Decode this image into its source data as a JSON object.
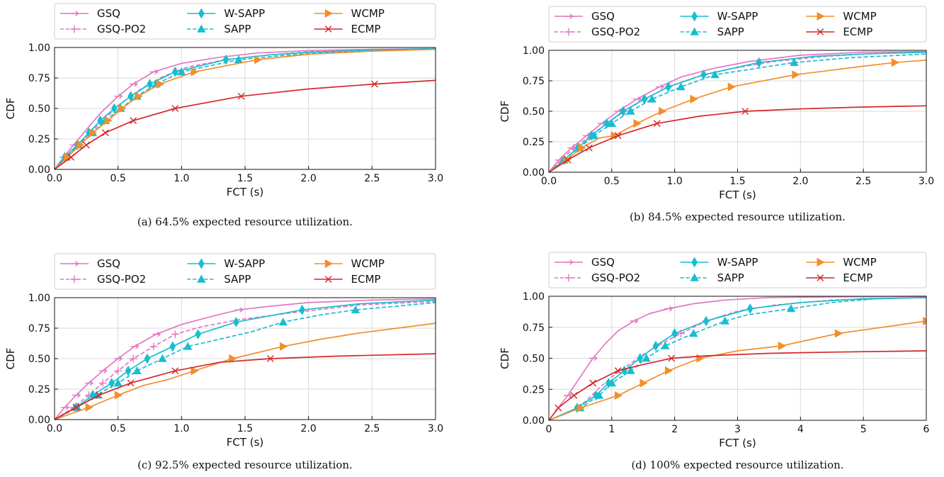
{
  "figure": {
    "captions": [
      "(a) 64.5% expected resource utilization.",
      "(b) 84.5% expected resource utilization.",
      "(c) 92.5% expected resource utilization.",
      "(d) 100% expected resource utilization."
    ]
  },
  "legend": [
    {
      "label": "GSQ",
      "color": "#e377c2",
      "marker": "tri-right-line",
      "dash": "solid"
    },
    {
      "label": "GSQ-PO2",
      "color": "#e377c2",
      "marker": "plus",
      "dash": "dashed"
    },
    {
      "label": "W-SAPP",
      "color": "#17becf",
      "marker": "thin-diamond",
      "dash": "solid"
    },
    {
      "label": "SAPP",
      "color": "#17becf",
      "marker": "triangle-up",
      "dash": "dashed"
    },
    {
      "label": "WCMP",
      "color": "#f28e2b",
      "marker": "triangle-right",
      "dash": "solid"
    },
    {
      "label": "ECMP",
      "color": "#d62728",
      "marker": "x",
      "dash": "solid"
    }
  ],
  "chart_data": [
    {
      "type": "line",
      "panel": "a",
      "xlabel": "FCT (s)",
      "ylabel": "CDF",
      "xlim": [
        0,
        3
      ],
      "ylim": [
        0,
        1
      ],
      "xticks": [
        "0.0",
        "0.5",
        "1.0",
        "1.5",
        "2.0",
        "2.5",
        "3.0"
      ],
      "yticks": [
        "0.00",
        "0.25",
        "0.50",
        "0.75",
        "1.00"
      ],
      "grid": true,
      "series": [
        {
          "name": "GSQ",
          "x": [
            0,
            0.07,
            0.15,
            0.27,
            0.37,
            0.5,
            0.62,
            0.78,
            1.0,
            1.3,
            1.6,
            2.0,
            2.5,
            3.0
          ],
          "y": [
            0,
            0.1,
            0.2,
            0.35,
            0.47,
            0.6,
            0.7,
            0.8,
            0.87,
            0.92,
            0.955,
            0.975,
            0.985,
            0.99
          ]
        },
        {
          "name": "GSQ-PO2",
          "x": [
            0,
            0.08,
            0.18,
            0.3,
            0.42,
            0.55,
            0.68,
            0.85,
            1.05,
            1.35,
            1.7,
            2.0,
            2.5,
            3.0
          ],
          "y": [
            0,
            0.1,
            0.2,
            0.32,
            0.44,
            0.56,
            0.66,
            0.76,
            0.84,
            0.9,
            0.94,
            0.965,
            0.98,
            0.99
          ]
        },
        {
          "name": "W-SAPP",
          "x": [
            0,
            0.08,
            0.18,
            0.27,
            0.36,
            0.47,
            0.6,
            0.75,
            0.95,
            1.35,
            1.7,
            2.0,
            2.5,
            3.0
          ],
          "y": [
            0,
            0.1,
            0.2,
            0.3,
            0.4,
            0.5,
            0.6,
            0.7,
            0.8,
            0.9,
            0.94,
            0.96,
            0.98,
            0.99
          ]
        },
        {
          "name": "SAPP",
          "x": [
            0,
            0.09,
            0.19,
            0.3,
            0.4,
            0.52,
            0.65,
            0.8,
            1.0,
            1.45,
            1.8,
            2.1,
            2.5,
            3.0
          ],
          "y": [
            0,
            0.1,
            0.2,
            0.3,
            0.4,
            0.5,
            0.6,
            0.7,
            0.8,
            0.9,
            0.935,
            0.955,
            0.975,
            0.99
          ]
        },
        {
          "name": "WCMP",
          "x": [
            0,
            0.1,
            0.2,
            0.3,
            0.42,
            0.53,
            0.66,
            0.83,
            1.1,
            1.6,
            2.0,
            2.5,
            3.0
          ],
          "y": [
            0,
            0.1,
            0.2,
            0.3,
            0.4,
            0.5,
            0.6,
            0.7,
            0.8,
            0.9,
            0.945,
            0.97,
            0.985
          ]
        },
        {
          "name": "ECMP",
          "x": [
            0,
            0.13,
            0.25,
            0.4,
            0.62,
            0.95,
            1.47,
            2.0,
            2.52,
            3.0
          ],
          "y": [
            0,
            0.1,
            0.2,
            0.3,
            0.4,
            0.5,
            0.6,
            0.66,
            0.7,
            0.73
          ]
        }
      ]
    },
    {
      "type": "line",
      "panel": "b",
      "xlabel": "FCT (s)",
      "ylabel": "CDF",
      "xlim": [
        0,
        3
      ],
      "ylim": [
        0,
        1
      ],
      "xticks": [
        "0.0",
        "0.5",
        "1.0",
        "1.5",
        "2.0",
        "2.5",
        "3.0"
      ],
      "yticks": [
        "0.00",
        "0.25",
        "0.50",
        "0.75",
        "1.00"
      ],
      "grid": true,
      "series": [
        {
          "name": "GSQ",
          "x": [
            0,
            0.08,
            0.18,
            0.3,
            0.42,
            0.55,
            0.7,
            0.88,
            1.05,
            1.3,
            1.6,
            2.0,
            2.5,
            3.0
          ],
          "y": [
            0,
            0.1,
            0.2,
            0.3,
            0.4,
            0.5,
            0.6,
            0.7,
            0.78,
            0.85,
            0.91,
            0.96,
            0.985,
            0.99
          ]
        },
        {
          "name": "GSQ-PO2",
          "x": [
            0,
            0.1,
            0.2,
            0.33,
            0.46,
            0.6,
            0.76,
            0.95,
            1.17,
            1.45,
            1.8,
            2.2,
            2.6,
            3.0
          ],
          "y": [
            0,
            0.1,
            0.2,
            0.3,
            0.4,
            0.5,
            0.6,
            0.7,
            0.78,
            0.85,
            0.91,
            0.95,
            0.975,
            0.985
          ]
        },
        {
          "name": "W-SAPP",
          "x": [
            0,
            0.12,
            0.23,
            0.34,
            0.46,
            0.59,
            0.76,
            0.95,
            1.23,
            1.67,
            2.1,
            2.5,
            3.0
          ],
          "y": [
            0,
            0.1,
            0.2,
            0.3,
            0.4,
            0.5,
            0.6,
            0.7,
            0.8,
            0.9,
            0.95,
            0.97,
            0.985
          ]
        },
        {
          "name": "SAPP",
          "x": [
            0,
            0.12,
            0.24,
            0.36,
            0.5,
            0.65,
            0.82,
            1.05,
            1.32,
            1.95,
            2.4,
            3.0
          ],
          "y": [
            0,
            0.1,
            0.2,
            0.3,
            0.4,
            0.5,
            0.6,
            0.7,
            0.8,
            0.9,
            0.94,
            0.97
          ]
        },
        {
          "name": "WCMP",
          "x": [
            0,
            0.14,
            0.26,
            0.4,
            0.52,
            0.7,
            0.9,
            1.15,
            1.45,
            1.96,
            2.5,
            2.75,
            3.0
          ],
          "y": [
            0,
            0.1,
            0.2,
            0.28,
            0.3,
            0.4,
            0.5,
            0.6,
            0.7,
            0.8,
            0.87,
            0.9,
            0.92
          ]
        },
        {
          "name": "ECMP",
          "x": [
            0,
            0.15,
            0.32,
            0.55,
            0.86,
            1.2,
            1.56,
            2.0,
            2.5,
            3.0
          ],
          "y": [
            0,
            0.1,
            0.2,
            0.3,
            0.4,
            0.46,
            0.5,
            0.52,
            0.535,
            0.545
          ]
        }
      ]
    },
    {
      "type": "line",
      "panel": "c",
      "xlabel": "FCT (s)",
      "ylabel": "CDF",
      "xlim": [
        0,
        3
      ],
      "ylim": [
        0,
        1
      ],
      "xticks": [
        "0.0",
        "0.5",
        "1.0",
        "1.5",
        "2.0",
        "2.5",
        "3.0"
      ],
      "yticks": [
        "0.00",
        "0.25",
        "0.50",
        "0.75",
        "1.00"
      ],
      "grid": true,
      "series": [
        {
          "name": "GSQ",
          "x": [
            0,
            0.08,
            0.17,
            0.27,
            0.38,
            0.5,
            0.63,
            0.8,
            1.0,
            1.25,
            1.45,
            1.7,
            2.0,
            2.5,
            3.0
          ],
          "y": [
            0,
            0.1,
            0.2,
            0.3,
            0.4,
            0.5,
            0.6,
            0.7,
            0.78,
            0.85,
            0.9,
            0.93,
            0.96,
            0.98,
            0.99
          ]
        },
        {
          "name": "GSQ-PO2",
          "x": [
            0,
            0.15,
            0.27,
            0.38,
            0.5,
            0.62,
            0.78,
            0.95,
            1.15,
            1.45,
            1.9,
            2.4,
            3.0
          ],
          "y": [
            0,
            0.1,
            0.2,
            0.3,
            0.4,
            0.5,
            0.6,
            0.7,
            0.76,
            0.82,
            0.88,
            0.94,
            0.97
          ]
        },
        {
          "name": "W-SAPP",
          "x": [
            0,
            0.17,
            0.3,
            0.45,
            0.58,
            0.73,
            0.93,
            1.13,
            1.43,
            1.95,
            2.4,
            3.0
          ],
          "y": [
            0,
            0.1,
            0.2,
            0.3,
            0.4,
            0.5,
            0.6,
            0.7,
            0.8,
            0.9,
            0.95,
            0.98
          ]
        },
        {
          "name": "SAPP",
          "x": [
            0,
            0.18,
            0.33,
            0.5,
            0.65,
            0.85,
            1.05,
            1.3,
            1.55,
            1.8,
            2.1,
            2.37,
            3.0
          ],
          "y": [
            0,
            0.1,
            0.2,
            0.3,
            0.4,
            0.5,
            0.6,
            0.66,
            0.72,
            0.8,
            0.86,
            0.9,
            0.96
          ]
        },
        {
          "name": "WCMP",
          "x": [
            0,
            0.27,
            0.5,
            0.7,
            0.9,
            1.1,
            1.4,
            1.8,
            2.1,
            2.4,
            2.7,
            3.0
          ],
          "y": [
            0,
            0.1,
            0.2,
            0.28,
            0.33,
            0.4,
            0.5,
            0.6,
            0.66,
            0.71,
            0.75,
            0.79
          ]
        },
        {
          "name": "ECMP",
          "x": [
            0,
            0.17,
            0.35,
            0.6,
            0.95,
            1.3,
            1.7,
            2.2,
            2.6,
            3.0
          ],
          "y": [
            0,
            0.1,
            0.2,
            0.3,
            0.4,
            0.47,
            0.5,
            0.52,
            0.53,
            0.54
          ]
        }
      ]
    },
    {
      "type": "line",
      "panel": "d",
      "xlabel": "FCT (s)",
      "ylabel": "CDF",
      "xlim": [
        0,
        6
      ],
      "ylim": [
        0,
        1
      ],
      "xticks": [
        "0",
        "1",
        "2",
        "3",
        "4",
        "5",
        "6"
      ],
      "yticks": [
        "0.00",
        "0.25",
        "0.50",
        "0.75",
        "1.00"
      ],
      "grid": true,
      "series": [
        {
          "name": "GSQ",
          "x": [
            0,
            0.3,
            0.5,
            0.7,
            0.9,
            1.1,
            1.35,
            1.6,
            1.9,
            2.3,
            2.8,
            3.5,
            4.5,
            6.0
          ],
          "y": [
            0,
            0.2,
            0.35,
            0.5,
            0.62,
            0.72,
            0.8,
            0.86,
            0.9,
            0.94,
            0.97,
            0.99,
            0.995,
            1.0
          ]
        },
        {
          "name": "GSQ-PO2",
          "x": [
            0,
            0.4,
            0.6,
            0.8,
            1.0,
            1.25,
            1.5,
            1.8,
            2.1,
            2.5,
            3.0,
            3.6,
            4.5,
            6.0
          ],
          "y": [
            0,
            0.08,
            0.16,
            0.26,
            0.35,
            0.44,
            0.53,
            0.62,
            0.7,
            0.8,
            0.88,
            0.93,
            0.97,
            0.99
          ]
        },
        {
          "name": "W-SAPP",
          "x": [
            0,
            0.45,
            0.75,
            0.95,
            1.2,
            1.45,
            1.7,
            2.0,
            2.5,
            3.2,
            4.0,
            5.0,
            6.0
          ],
          "y": [
            0,
            0.1,
            0.2,
            0.3,
            0.4,
            0.5,
            0.6,
            0.7,
            0.8,
            0.9,
            0.95,
            0.98,
            0.99
          ]
        },
        {
          "name": "SAPP",
          "x": [
            0,
            0.5,
            0.8,
            1.0,
            1.3,
            1.55,
            1.85,
            2.3,
            2.8,
            3.15,
            3.85,
            4.5,
            5.2,
            6.0
          ],
          "y": [
            0,
            0.1,
            0.2,
            0.3,
            0.4,
            0.5,
            0.6,
            0.7,
            0.8,
            0.85,
            0.9,
            0.95,
            0.98,
            0.99
          ]
        },
        {
          "name": "WCMP",
          "x": [
            0,
            0.5,
            0.8,
            1.1,
            1.5,
            1.9,
            2.4,
            3.0,
            3.7,
            4.6,
            5.3,
            6.0
          ],
          "y": [
            0,
            0.1,
            0.15,
            0.2,
            0.3,
            0.4,
            0.5,
            0.56,
            0.6,
            0.7,
            0.75,
            0.8
          ]
        },
        {
          "name": "ECMP",
          "x": [
            0,
            0.15,
            0.4,
            0.7,
            1.1,
            1.5,
            1.95,
            2.5,
            3.5,
            4.5,
            6.0
          ],
          "y": [
            0,
            0.1,
            0.2,
            0.3,
            0.4,
            0.45,
            0.5,
            0.52,
            0.54,
            0.55,
            0.56
          ]
        }
      ]
    }
  ]
}
